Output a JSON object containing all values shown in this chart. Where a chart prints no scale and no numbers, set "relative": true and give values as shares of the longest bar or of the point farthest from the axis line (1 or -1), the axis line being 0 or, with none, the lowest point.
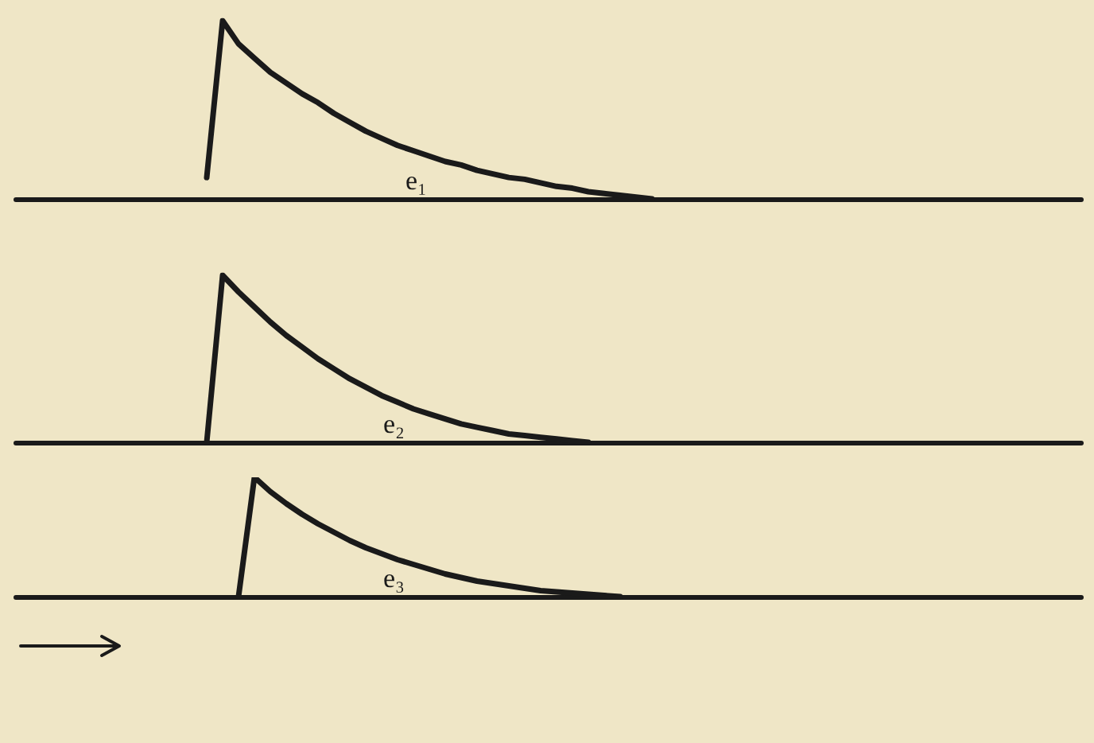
{
  "chart_data": [
    {
      "type": "line",
      "relative": true,
      "legend": false,
      "categories": [
        null,
        null,
        null,
        null,
        null,
        null,
        null,
        null,
        null,
        null,
        null,
        null,
        null,
        null,
        null,
        null,
        null,
        null,
        null,
        null,
        null,
        null,
        null,
        null,
        null,
        null,
        null,
        null,
        null,
        null,
        null,
        null,
        null,
        null,
        null,
        null,
        null,
        null,
        null,
        null,
        null,
        null,
        null,
        null,
        null,
        null,
        null,
        null,
        null,
        null,
        null,
        null,
        null,
        null,
        null,
        null,
        null,
        null,
        null,
        null,
        null,
        null,
        null,
        null,
        null,
        null,
        null,
        null
      ],
      "series": [
        {
          "name": "e₁",
          "color": "#1a1a1a",
          "values": [
            null,
            null,
            null,
            null,
            null,
            null,
            null,
            null,
            null,
            null,
            null,
            null,
            0.12,
            1.0,
            0.87,
            0.79,
            0.71,
            0.65,
            0.59,
            0.54,
            0.48,
            0.43,
            0.38,
            0.34,
            0.3,
            0.27,
            0.24,
            0.21,
            0.19,
            0.16,
            0.14,
            0.12,
            0.11,
            0.09,
            0.07,
            0.06,
            0.04,
            0.03,
            0.02,
            0.01,
            0,
            null,
            null,
            null,
            null,
            null,
            null,
            null,
            null,
            null,
            null,
            null,
            null,
            null,
            null,
            null,
            null,
            null,
            null,
            null,
            null,
            null,
            null,
            null,
            null,
            null,
            null,
            null
          ]
        }
      ]
    },
    {
      "type": "line",
      "relative": true,
      "legend": false,
      "categories": [
        null,
        null,
        null,
        null,
        null,
        null,
        null,
        null,
        null,
        null,
        null,
        null,
        null,
        null,
        null,
        null,
        null,
        null,
        null,
        null,
        null,
        null,
        null,
        null,
        null,
        null,
        null,
        null,
        null,
        null,
        null,
        null,
        null,
        null,
        null,
        null,
        null,
        null,
        null,
        null,
        null,
        null,
        null,
        null,
        null,
        null,
        null,
        null,
        null,
        null,
        null,
        null,
        null,
        null,
        null,
        null,
        null,
        null,
        null,
        null,
        null,
        null,
        null,
        null,
        null,
        null,
        null,
        null
      ],
      "series": [
        {
          "name": "e₂",
          "color": "#1a1a1a",
          "values": [
            null,
            null,
            null,
            null,
            null,
            null,
            null,
            null,
            null,
            null,
            null,
            null,
            0,
            1.0,
            0.9,
            0.81,
            0.72,
            0.64,
            0.57,
            0.5,
            0.44,
            0.38,
            0.33,
            0.28,
            0.24,
            0.2,
            0.17,
            0.14,
            0.11,
            0.09,
            0.07,
            0.05,
            0.04,
            0.03,
            0.02,
            0.01,
            0,
            null,
            null,
            null,
            null,
            null,
            null,
            null,
            null,
            null,
            null,
            null,
            null,
            null,
            null,
            null,
            null,
            null,
            null,
            null,
            null,
            null,
            null,
            null,
            null,
            null,
            null,
            null,
            null,
            null,
            null,
            null
          ]
        }
      ]
    },
    {
      "type": "line",
      "relative": true,
      "legend": false,
      "categories": [
        null,
        null,
        null,
        null,
        null,
        null,
        null,
        null,
        null,
        null,
        null,
        null,
        null,
        null,
        null,
        null,
        null,
        null,
        null,
        null,
        null,
        null,
        null,
        null,
        null,
        null,
        null,
        null,
        null,
        null,
        null,
        null,
        null,
        null,
        null,
        null,
        null,
        null,
        null,
        null,
        null,
        null,
        null,
        null,
        null,
        null,
        null,
        null,
        null,
        null,
        null,
        null,
        null,
        null,
        null,
        null,
        null,
        null,
        null,
        null,
        null,
        null,
        null,
        null,
        null,
        null,
        null,
        null
      ],
      "series": [
        {
          "name": "e₃",
          "color": "#1a1a1a",
          "values": [
            null,
            null,
            null,
            null,
            null,
            null,
            null,
            null,
            null,
            null,
            null,
            null,
            null,
            null,
            0,
            1.0,
            0.88,
            0.78,
            0.69,
            0.61,
            0.54,
            0.47,
            0.41,
            0.36,
            0.31,
            0.27,
            0.23,
            0.19,
            0.16,
            0.13,
            0.11,
            0.09,
            0.07,
            0.05,
            0.04,
            0.03,
            0.02,
            0.01,
            0,
            null,
            null,
            null,
            null,
            null,
            null,
            null,
            null,
            null,
            null,
            null,
            null,
            null,
            null,
            null,
            null,
            null,
            null,
            null,
            null,
            null,
            null,
            null,
            null,
            null,
            null,
            null,
            null,
            null
          ]
        }
      ]
    }
  ]
}
